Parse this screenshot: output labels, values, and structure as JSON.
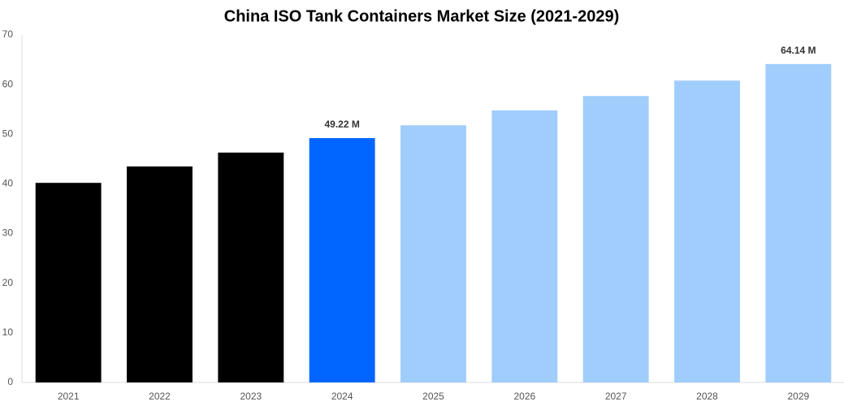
{
  "chart_data": {
    "type": "bar",
    "title": "China ISO Tank Containers Market Size (2021-2029)",
    "categories": [
      "2021",
      "2022",
      "2023",
      "2024",
      "2025",
      "2026",
      "2027",
      "2028",
      "2029"
    ],
    "values": [
      40.2,
      43.5,
      46.3,
      49.22,
      51.8,
      54.8,
      57.7,
      60.8,
      64.14
    ],
    "value_labels": [
      null,
      null,
      null,
      "49.22 M",
      null,
      null,
      null,
      null,
      "64.14 M"
    ],
    "colors": [
      "#000000",
      "#000000",
      "#000000",
      "#0066ff",
      "#a0cdfc",
      "#a0cdfc",
      "#a0cdfc",
      "#a0cdfc",
      "#a0cdfc"
    ],
    "ylim": [
      0,
      70
    ],
    "yticks": [
      0,
      10,
      20,
      30,
      40,
      50,
      60,
      70
    ],
    "grid": false
  }
}
